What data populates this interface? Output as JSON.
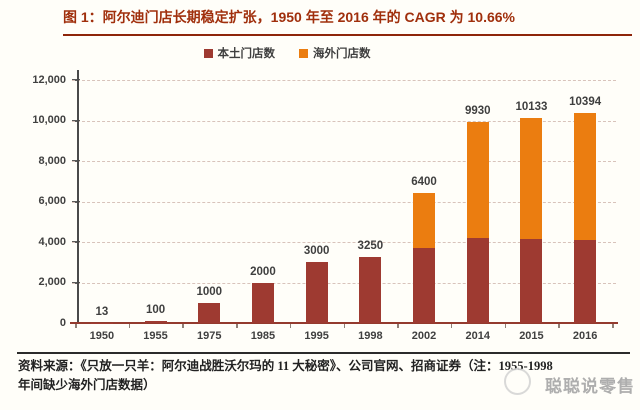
{
  "chart_data": {
    "type": "bar",
    "stacked": true,
    "title": "图 1：阿尔迪门店长期稳定扩张，1950 年至 2016 年的 CAGR 为 10.66%",
    "categories": [
      "1950",
      "1955",
      "1975",
      "1985",
      "1995",
      "1998",
      "2002",
      "2014",
      "2015",
      "2016"
    ],
    "series": [
      {
        "name": "本土门店数",
        "color": "#9E3A31",
        "values": [
          13,
          100,
          1000,
          2000,
          3000,
          3250,
          3700,
          4200,
          4150,
          4100
        ]
      },
      {
        "name": "海外门店数",
        "color": "#EB7D10",
        "values": [
          0,
          0,
          0,
          0,
          0,
          0,
          2700,
          5730,
          5983,
          6294
        ]
      }
    ],
    "total_labels": [
      "13",
      "100",
      "1000",
      "2000",
      "3000",
      "3250",
      "6400",
      "9930",
      "10133",
      "10394"
    ],
    "ylim": [
      0,
      12000
    ],
    "ytick_interval": 2000,
    "ytick_labels": [
      "0",
      "2,000",
      "4,000",
      "6,000",
      "8,000",
      "10,000",
      "12,000"
    ],
    "grid": "dashed-horizontal",
    "legend_position": "top",
    "xlabel": "",
    "ylabel": "",
    "note": "1955-1998 年间缺少海外门店数据"
  },
  "source": {
    "line1": "资料来源：《只放一只羊：阿尔迪战胜沃尔玛的 11 大秘密》、公司官网、招商证券（注：1955-1998",
    "line2": "年间缺少海外门店数据）"
  },
  "watermark": {
    "text": "聪聪说零售"
  },
  "colors": {
    "title_text": "#A02F0C",
    "title_rule": "#8E250A",
    "domestic_bar": "#9E3A31",
    "overseas_bar": "#EB7D10",
    "x_axis": "#943A2E",
    "y_axis": "#4A4A4A",
    "gridline": "#D8C3BB",
    "axis_label": "#404040",
    "watermark": "#A6A6A6"
  }
}
